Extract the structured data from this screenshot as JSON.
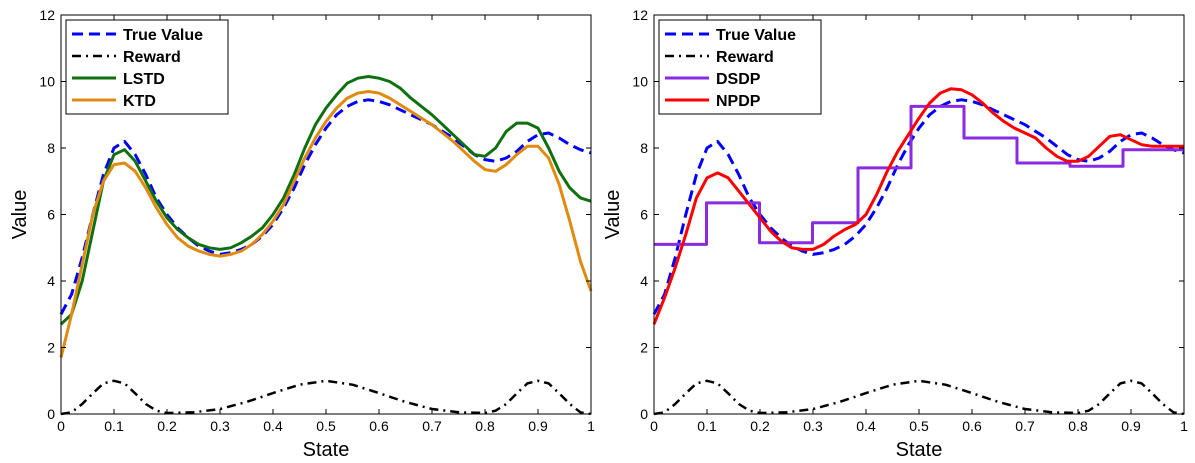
{
  "chart_data": [
    {
      "type": "line",
      "xlabel": "State",
      "ylabel": "Value",
      "xlim": [
        0,
        1
      ],
      "ylim": [
        0,
        12
      ],
      "xticks": [
        "0",
        "0.1",
        "0.2",
        "0.3",
        "0.4",
        "0.5",
        "0.6",
        "0.7",
        "0.8",
        "0.9",
        "1"
      ],
      "yticks": [
        "0",
        "2",
        "4",
        "6",
        "8",
        "10",
        "12"
      ],
      "grid": false,
      "legend_position": "top-left",
      "series": [
        {
          "name": "True Value",
          "color": "#0000ff",
          "style": "dashed",
          "x": [
            0,
            0.02,
            0.04,
            0.06,
            0.08,
            0.1,
            0.12,
            0.14,
            0.16,
            0.18,
            0.2,
            0.22,
            0.24,
            0.26,
            0.28,
            0.3,
            0.32,
            0.34,
            0.36,
            0.38,
            0.4,
            0.42,
            0.44,
            0.46,
            0.48,
            0.5,
            0.52,
            0.54,
            0.56,
            0.58,
            0.6,
            0.62,
            0.64,
            0.66,
            0.68,
            0.7,
            0.72,
            0.74,
            0.76,
            0.78,
            0.8,
            0.82,
            0.84,
            0.86,
            0.88,
            0.9,
            0.92,
            0.94,
            0.96,
            0.98,
            1.0
          ],
          "y": [
            3.0,
            3.6,
            4.7,
            6.0,
            7.2,
            8.0,
            8.2,
            7.8,
            7.2,
            6.5,
            6.0,
            5.6,
            5.3,
            5.05,
            4.9,
            4.8,
            4.85,
            4.95,
            5.1,
            5.35,
            5.7,
            6.2,
            6.8,
            7.5,
            8.1,
            8.6,
            9.0,
            9.25,
            9.4,
            9.45,
            9.4,
            9.3,
            9.15,
            9.0,
            8.85,
            8.7,
            8.5,
            8.3,
            8.05,
            7.8,
            7.65,
            7.6,
            7.7,
            7.9,
            8.2,
            8.4,
            8.45,
            8.3,
            8.1,
            7.95,
            7.85
          ]
        },
        {
          "name": "Reward",
          "color": "#000000",
          "style": "dashdot",
          "x": [
            0,
            0.02,
            0.04,
            0.06,
            0.08,
            0.1,
            0.12,
            0.14,
            0.16,
            0.18,
            0.2,
            0.25,
            0.3,
            0.35,
            0.4,
            0.45,
            0.5,
            0.55,
            0.6,
            0.65,
            0.7,
            0.75,
            0.8,
            0.82,
            0.84,
            0.86,
            0.88,
            0.9,
            0.92,
            0.94,
            0.96,
            0.98,
            1.0
          ],
          "y": [
            0,
            0.05,
            0.3,
            0.62,
            0.92,
            1.0,
            0.92,
            0.62,
            0.3,
            0.1,
            0.03,
            0.05,
            0.15,
            0.36,
            0.63,
            0.88,
            1.0,
            0.88,
            0.63,
            0.36,
            0.15,
            0.05,
            0.03,
            0.1,
            0.3,
            0.62,
            0.92,
            1.0,
            0.92,
            0.62,
            0.3,
            0.05,
            0
          ]
        },
        {
          "name": "LSTD",
          "color": "#107010",
          "style": "solid",
          "x": [
            0,
            0.02,
            0.04,
            0.06,
            0.08,
            0.1,
            0.12,
            0.14,
            0.16,
            0.18,
            0.2,
            0.22,
            0.24,
            0.26,
            0.28,
            0.3,
            0.32,
            0.34,
            0.36,
            0.38,
            0.4,
            0.42,
            0.44,
            0.46,
            0.48,
            0.5,
            0.52,
            0.54,
            0.56,
            0.58,
            0.6,
            0.62,
            0.64,
            0.66,
            0.68,
            0.7,
            0.72,
            0.74,
            0.76,
            0.78,
            0.8,
            0.82,
            0.84,
            0.86,
            0.88,
            0.9,
            0.92,
            0.94,
            0.96,
            0.98,
            1.0
          ],
          "y": [
            2.7,
            3.0,
            4.0,
            5.5,
            7.0,
            7.8,
            7.95,
            7.6,
            7.0,
            6.4,
            5.9,
            5.55,
            5.3,
            5.1,
            5.0,
            4.95,
            5.0,
            5.15,
            5.35,
            5.6,
            6.0,
            6.5,
            7.2,
            8.0,
            8.7,
            9.2,
            9.6,
            9.95,
            10.1,
            10.15,
            10.1,
            10.0,
            9.8,
            9.5,
            9.25,
            9.0,
            8.7,
            8.4,
            8.1,
            7.8,
            7.75,
            8.0,
            8.5,
            8.75,
            8.75,
            8.6,
            8.0,
            7.3,
            6.8,
            6.5,
            6.4
          ]
        },
        {
          "name": "KTD",
          "color": "#e08a10",
          "style": "solid",
          "x": [
            0,
            0.02,
            0.04,
            0.06,
            0.08,
            0.1,
            0.12,
            0.14,
            0.16,
            0.18,
            0.2,
            0.22,
            0.24,
            0.26,
            0.28,
            0.3,
            0.32,
            0.34,
            0.36,
            0.38,
            0.4,
            0.42,
            0.44,
            0.46,
            0.48,
            0.5,
            0.52,
            0.54,
            0.56,
            0.58,
            0.6,
            0.62,
            0.64,
            0.66,
            0.68,
            0.7,
            0.72,
            0.74,
            0.76,
            0.78,
            0.8,
            0.82,
            0.84,
            0.86,
            0.88,
            0.9,
            0.92,
            0.94,
            0.96,
            0.98,
            1.0
          ],
          "y": [
            1.7,
            3.0,
            4.5,
            6.0,
            7.0,
            7.5,
            7.55,
            7.3,
            6.8,
            6.2,
            5.7,
            5.3,
            5.05,
            4.9,
            4.8,
            4.75,
            4.8,
            4.9,
            5.1,
            5.4,
            5.8,
            6.3,
            7.0,
            7.7,
            8.3,
            8.8,
            9.2,
            9.5,
            9.65,
            9.7,
            9.65,
            9.5,
            9.3,
            9.1,
            8.9,
            8.7,
            8.45,
            8.2,
            7.9,
            7.6,
            7.35,
            7.3,
            7.5,
            7.8,
            8.05,
            8.05,
            7.7,
            6.9,
            5.8,
            4.6,
            3.7
          ]
        }
      ]
    },
    {
      "type": "line",
      "xlabel": "State",
      "ylabel": "Value",
      "xlim": [
        0,
        1
      ],
      "ylim": [
        0,
        12
      ],
      "xticks": [
        "0",
        "0.1",
        "0.2",
        "0.3",
        "0.4",
        "0.5",
        "0.6",
        "0.7",
        "0.8",
        "0.9",
        "1"
      ],
      "yticks": [
        "0",
        "2",
        "4",
        "6",
        "8",
        "10",
        "12"
      ],
      "grid": false,
      "legend_position": "top-left",
      "series": [
        {
          "name": "True Value",
          "color": "#0000ff",
          "style": "dashed",
          "x": [
            0,
            0.02,
            0.04,
            0.06,
            0.08,
            0.1,
            0.12,
            0.14,
            0.16,
            0.18,
            0.2,
            0.22,
            0.24,
            0.26,
            0.28,
            0.3,
            0.32,
            0.34,
            0.36,
            0.38,
            0.4,
            0.42,
            0.44,
            0.46,
            0.48,
            0.5,
            0.52,
            0.54,
            0.56,
            0.58,
            0.6,
            0.62,
            0.64,
            0.66,
            0.68,
            0.7,
            0.72,
            0.74,
            0.76,
            0.78,
            0.8,
            0.82,
            0.84,
            0.86,
            0.88,
            0.9,
            0.92,
            0.94,
            0.96,
            0.98,
            1.0
          ],
          "y": [
            3.0,
            3.6,
            4.7,
            6.0,
            7.2,
            8.0,
            8.2,
            7.8,
            7.2,
            6.5,
            6.0,
            5.6,
            5.3,
            5.05,
            4.9,
            4.8,
            4.85,
            4.95,
            5.1,
            5.35,
            5.7,
            6.2,
            6.8,
            7.5,
            8.1,
            8.6,
            9.0,
            9.25,
            9.4,
            9.45,
            9.4,
            9.3,
            9.15,
            9.0,
            8.85,
            8.7,
            8.5,
            8.3,
            8.05,
            7.8,
            7.65,
            7.6,
            7.7,
            7.9,
            8.2,
            8.4,
            8.45,
            8.3,
            8.1,
            7.95,
            7.85
          ]
        },
        {
          "name": "Reward",
          "color": "#000000",
          "style": "dashdot",
          "x": [
            0,
            0.02,
            0.04,
            0.06,
            0.08,
            0.1,
            0.12,
            0.14,
            0.16,
            0.18,
            0.2,
            0.25,
            0.3,
            0.35,
            0.4,
            0.45,
            0.5,
            0.55,
            0.6,
            0.65,
            0.7,
            0.75,
            0.8,
            0.82,
            0.84,
            0.86,
            0.88,
            0.9,
            0.92,
            0.94,
            0.96,
            0.98,
            1.0
          ],
          "y": [
            0,
            0.05,
            0.3,
            0.62,
            0.92,
            1.0,
            0.92,
            0.62,
            0.3,
            0.1,
            0.03,
            0.05,
            0.15,
            0.36,
            0.63,
            0.88,
            1.0,
            0.88,
            0.63,
            0.36,
            0.15,
            0.05,
            0.03,
            0.1,
            0.3,
            0.62,
            0.92,
            1.0,
            0.92,
            0.62,
            0.3,
            0.05,
            0
          ]
        },
        {
          "name": "DSDP",
          "color": "#8a2be2",
          "style": "solid",
          "x": [
            0,
            0.099,
            0.099,
            0.199,
            0.199,
            0.299,
            0.299,
            0.385,
            0.385,
            0.485,
            0.485,
            0.585,
            0.585,
            0.685,
            0.685,
            0.785,
            0.785,
            0.885,
            0.885,
            1.0
          ],
          "y": [
            5.1,
            5.1,
            6.35,
            6.35,
            5.15,
            5.15,
            5.75,
            5.75,
            7.4,
            7.4,
            9.25,
            9.25,
            8.3,
            8.3,
            7.55,
            7.55,
            7.45,
            7.45,
            7.95,
            7.95
          ]
        },
        {
          "name": "NPDP",
          "color": "#ff0000",
          "style": "solid",
          "x": [
            0,
            0.02,
            0.04,
            0.06,
            0.08,
            0.1,
            0.12,
            0.14,
            0.16,
            0.18,
            0.2,
            0.22,
            0.24,
            0.26,
            0.28,
            0.3,
            0.32,
            0.34,
            0.36,
            0.38,
            0.4,
            0.42,
            0.44,
            0.46,
            0.48,
            0.5,
            0.52,
            0.54,
            0.56,
            0.58,
            0.6,
            0.62,
            0.64,
            0.66,
            0.68,
            0.7,
            0.72,
            0.74,
            0.76,
            0.78,
            0.8,
            0.82,
            0.84,
            0.86,
            0.88,
            0.9,
            0.92,
            0.94,
            0.96,
            0.98,
            1.0
          ],
          "y": [
            2.7,
            3.5,
            4.4,
            5.4,
            6.5,
            7.1,
            7.25,
            7.1,
            6.7,
            6.3,
            5.9,
            5.5,
            5.2,
            5.0,
            4.95,
            4.95,
            5.1,
            5.35,
            5.55,
            5.7,
            6.0,
            6.6,
            7.3,
            7.9,
            8.4,
            8.9,
            9.35,
            9.65,
            9.78,
            9.75,
            9.6,
            9.35,
            9.05,
            8.8,
            8.6,
            8.45,
            8.3,
            8.0,
            7.75,
            7.6,
            7.6,
            7.75,
            8.05,
            8.35,
            8.4,
            8.25,
            8.1,
            8.05,
            8.05,
            8.05,
            8.05
          ]
        }
      ]
    }
  ]
}
